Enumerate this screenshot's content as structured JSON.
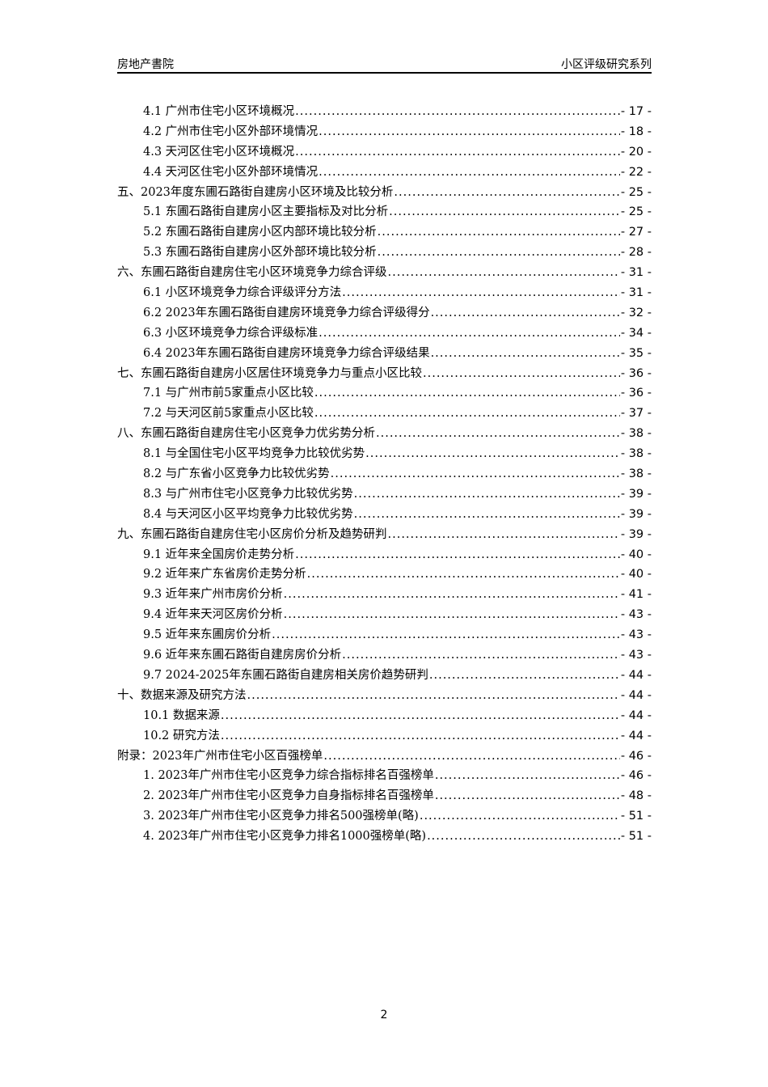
{
  "header": {
    "left": "房地产書院",
    "right": "小区评级研究系列"
  },
  "toc": [
    {
      "level": 2,
      "title": "4.1 广州市住宅小区环境概况",
      "page": "- 17 -"
    },
    {
      "level": 2,
      "title": "4.2 广州市住宅小区外部环境情况",
      "page": "- 18 -"
    },
    {
      "level": 2,
      "title": "4.3 天河区住宅小区环境概况",
      "page": "- 20 -"
    },
    {
      "level": 2,
      "title": "4.4 天河区住宅小区外部环境情况",
      "page": "- 22 -"
    },
    {
      "level": 1,
      "title": "五、2023年度东圃石路街自建房小区环境及比较分析",
      "page": "- 25 -"
    },
    {
      "level": 2,
      "title": "5.1 东圃石路街自建房小区主要指标及对比分析",
      "page": "- 25 -"
    },
    {
      "level": 2,
      "title": "5.2 东圃石路街自建房小区内部环境比较分析",
      "page": "- 27 -"
    },
    {
      "level": 2,
      "title": "5.3 东圃石路街自建房小区外部环境比较分析",
      "page": "- 28 -"
    },
    {
      "level": 1,
      "title": "六、东圃石路街自建房住宅小区环境竞争力综合评级",
      "page": "- 31 -"
    },
    {
      "level": 2,
      "title": "6.1 小区环境竞争力综合评级评分方法",
      "page": "- 31 -"
    },
    {
      "level": 2,
      "title": "6.2 2023年东圃石路街自建房环境竞争力综合评级得分",
      "page": "- 32 -"
    },
    {
      "level": 2,
      "title": "6.3 小区环境竞争力综合评级标准",
      "page": "- 34 -"
    },
    {
      "level": 2,
      "title": "6.4 2023年东圃石路街自建房环境竞争力综合评级结果",
      "page": "- 35 -"
    },
    {
      "level": 1,
      "title": "七、东圃石路街自建房小区居住环境竞争力与重点小区比较",
      "page": "- 36 -"
    },
    {
      "level": 2,
      "title": "7.1 与广州市前5家重点小区比较",
      "page": "- 36 -"
    },
    {
      "level": 2,
      "title": "7.2 与天河区前5家重点小区比较",
      "page": "- 37 -"
    },
    {
      "level": 1,
      "title": "八、东圃石路街自建房住宅小区竞争力优劣势分析",
      "page": "- 38 -"
    },
    {
      "level": 2,
      "title": "8.1 与全国住宅小区平均竞争力比较优劣势",
      "page": "- 38 -"
    },
    {
      "level": 2,
      "title": "8.2 与广东省小区竞争力比较优劣势",
      "page": "- 38 -"
    },
    {
      "level": 2,
      "title": "8.3 与广州市住宅小区竞争力比较优劣势",
      "page": "- 39 -"
    },
    {
      "level": 2,
      "title": "8.4 与天河区小区平均竞争力比较优劣势",
      "page": "- 39 -"
    },
    {
      "level": 1,
      "title": "九、东圃石路街自建房住宅小区房价分析及趋势研判",
      "page": "- 39 -"
    },
    {
      "level": 2,
      "title": "9.1 近年来全国房价走势分析",
      "page": "- 40 -"
    },
    {
      "level": 2,
      "title": "9.2 近年来广东省房价走势分析",
      "page": "- 40 -"
    },
    {
      "level": 2,
      "title": "9.3 近年来广州市房价分析",
      "page": "- 41 -"
    },
    {
      "level": 2,
      "title": "9.4 近年来天河区房价分析",
      "page": "- 43 -"
    },
    {
      "level": 2,
      "title": "9.5 近年来东圃房价分析",
      "page": "- 43 -"
    },
    {
      "level": 2,
      "title": "9.6 近年来东圃石路街自建房房价分析",
      "page": "- 43 -"
    },
    {
      "level": 2,
      "title": "9.7 2024-2025年东圃石路街自建房相关房价趋势研判",
      "page": "- 44 -"
    },
    {
      "level": 1,
      "title": "十、数据来源及研究方法",
      "page": "- 44 -"
    },
    {
      "level": 2,
      "title": "10.1 数据来源",
      "page": "- 44 -"
    },
    {
      "level": 2,
      "title": "10.2 研究方法",
      "page": "- 44 -"
    },
    {
      "level": 1,
      "title": "附录：2023年广州市住宅小区百强榜单",
      "page": "- 46 -"
    },
    {
      "level": 2,
      "title": "1. 2023年广州市住宅小区竞争力综合指标排名百强榜单",
      "page": "- 46 -"
    },
    {
      "level": 2,
      "title": "2. 2023年广州市住宅小区竞争力自身指标排名百强榜单",
      "page": "- 48 -"
    },
    {
      "level": 2,
      "title": "3. 2023年广州市住宅小区竞争力排名500强榜单(略)",
      "page": "- 51 -"
    },
    {
      "level": 2,
      "title": "4. 2023年广州市住宅小区竞争力排名1000强榜单(略)",
      "page": "- 51 -"
    }
  ],
  "footer": {
    "page_number": "2"
  }
}
